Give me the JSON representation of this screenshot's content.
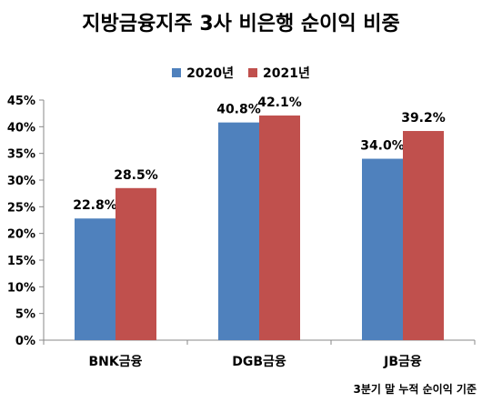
{
  "chart_data": {
    "type": "bar",
    "title": "지방금융지주 3사 비은행 순이익 비중",
    "categories": [
      "BNK금융",
      "DGB금융",
      "JB금융"
    ],
    "series": [
      {
        "name": "2020년",
        "values": [
          22.8,
          40.8,
          34.0
        ],
        "labels": [
          "22.8%",
          "40.8%",
          "34.0%"
        ],
        "color": "#4f81bd"
      },
      {
        "name": "2021년",
        "values": [
          28.5,
          42.1,
          39.2
        ],
        "labels": [
          "28.5%",
          "42.1%",
          "39.2%"
        ],
        "color": "#c0504d"
      }
    ],
    "ylim": [
      0,
      45
    ],
    "yticks": [
      0,
      5,
      10,
      15,
      20,
      25,
      30,
      35,
      40,
      45
    ],
    "ytick_labels": [
      "0%",
      "5%",
      "10%",
      "15%",
      "20%",
      "25%",
      "30%",
      "35%",
      "40%",
      "45%"
    ],
    "legend_position": "top",
    "grid": false
  },
  "footnote": "3분기 말 누적 순이익 기준"
}
